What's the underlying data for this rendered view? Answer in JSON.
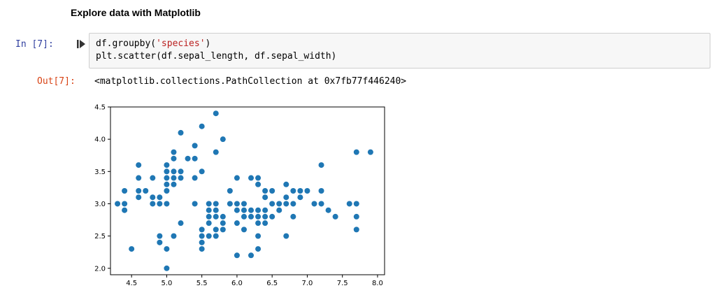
{
  "notebook": {
    "heading": "Explore data with Matplotlib",
    "cell": {
      "in_prompt": "In [7]:",
      "code_line1_pre": "df.groupby(",
      "code_line1_str": "'species'",
      "code_line1_post": ")",
      "code_line2": "plt.scatter(df.sepal_length, df.sepal_width)",
      "out_prompt": "Out[7]:",
      "out_text": "<matplotlib.collections.PathCollection at 0x7fb77f446240>"
    }
  },
  "colors": {
    "marker": "#1f77b4",
    "in_prompt": "#303f9f",
    "out_prompt": "#d84315",
    "string": "#ba2121"
  },
  "chart_data": {
    "type": "scatter",
    "xlim": [
      4.2,
      8.1
    ],
    "ylim": [
      1.9,
      4.5
    ],
    "xticks": [
      4.5,
      5.0,
      5.5,
      6.0,
      6.5,
      7.0,
      7.5,
      8.0
    ],
    "xtick_labels": [
      "4.5",
      "5.0",
      "5.5",
      "6.0",
      "6.5",
      "7.0",
      "7.5",
      "8.0"
    ],
    "yticks": [
      2.0,
      2.5,
      3.0,
      3.5,
      4.0,
      4.5
    ],
    "ytick_labels": [
      "2.0",
      "2.5",
      "3.0",
      "3.5",
      "4.0",
      "4.5"
    ],
    "grid": false,
    "points": [
      [
        4.3,
        3.0
      ],
      [
        4.4,
        3.0
      ],
      [
        4.4,
        2.9
      ],
      [
        4.4,
        3.2
      ],
      [
        4.5,
        2.3
      ],
      [
        4.6,
        3.1
      ],
      [
        4.6,
        3.4
      ],
      [
        4.6,
        3.6
      ],
      [
        4.6,
        3.2
      ],
      [
        4.7,
        3.2
      ],
      [
        4.8,
        3.4
      ],
      [
        4.8,
        3.0
      ],
      [
        4.8,
        3.1
      ],
      [
        4.9,
        3.0
      ],
      [
        4.9,
        3.1
      ],
      [
        4.9,
        2.4
      ],
      [
        4.9,
        2.5
      ],
      [
        5.0,
        3.6
      ],
      [
        5.0,
        3.4
      ],
      [
        5.0,
        3.0
      ],
      [
        5.0,
        3.5
      ],
      [
        5.0,
        3.2
      ],
      [
        5.0,
        3.3
      ],
      [
        5.0,
        2.0
      ],
      [
        5.0,
        2.3
      ],
      [
        5.1,
        3.5
      ],
      [
        5.1,
        3.8
      ],
      [
        5.1,
        3.7
      ],
      [
        5.1,
        3.3
      ],
      [
        5.1,
        3.4
      ],
      [
        5.1,
        2.5
      ],
      [
        5.2,
        4.1
      ],
      [
        5.2,
        3.5
      ],
      [
        5.2,
        3.4
      ],
      [
        5.2,
        2.7
      ],
      [
        5.3,
        3.7
      ],
      [
        5.4,
        3.9
      ],
      [
        5.4,
        3.7
      ],
      [
        5.4,
        3.4
      ],
      [
        5.4,
        3.0
      ],
      [
        5.5,
        4.2
      ],
      [
        5.5,
        3.5
      ],
      [
        5.5,
        2.3
      ],
      [
        5.5,
        2.4
      ],
      [
        5.5,
        2.6
      ],
      [
        5.5,
        2.5
      ],
      [
        5.6,
        3.0
      ],
      [
        5.6,
        2.9
      ],
      [
        5.6,
        2.5
      ],
      [
        5.6,
        2.8
      ],
      [
        5.6,
        2.7
      ],
      [
        5.7,
        4.4
      ],
      [
        5.7,
        3.8
      ],
      [
        5.7,
        2.6
      ],
      [
        5.7,
        2.8
      ],
      [
        5.7,
        2.5
      ],
      [
        5.7,
        2.9
      ],
      [
        5.7,
        3.0
      ],
      [
        5.8,
        4.0
      ],
      [
        5.8,
        2.7
      ],
      [
        5.8,
        2.6
      ],
      [
        5.8,
        2.8
      ],
      [
        5.9,
        3.0
      ],
      [
        5.9,
        3.2
      ],
      [
        6.0,
        2.2
      ],
      [
        6.0,
        2.9
      ],
      [
        6.0,
        2.7
      ],
      [
        6.0,
        3.4
      ],
      [
        6.0,
        3.0
      ],
      [
        6.1,
        2.9
      ],
      [
        6.1,
        2.8
      ],
      [
        6.1,
        2.6
      ],
      [
        6.1,
        3.0
      ],
      [
        6.2,
        2.2
      ],
      [
        6.2,
        2.9
      ],
      [
        6.2,
        3.4
      ],
      [
        6.2,
        2.8
      ],
      [
        6.3,
        3.3
      ],
      [
        6.3,
        2.5
      ],
      [
        6.3,
        2.3
      ],
      [
        6.3,
        2.7
      ],
      [
        6.3,
        2.9
      ],
      [
        6.3,
        2.8
      ],
      [
        6.3,
        3.4
      ],
      [
        6.4,
        3.2
      ],
      [
        6.4,
        2.9
      ],
      [
        6.4,
        2.7
      ],
      [
        6.4,
        2.8
      ],
      [
        6.4,
        3.1
      ],
      [
        6.5,
        2.8
      ],
      [
        6.5,
        3.0
      ],
      [
        6.5,
        3.2
      ],
      [
        6.6,
        2.9
      ],
      [
        6.6,
        3.0
      ],
      [
        6.7,
        3.1
      ],
      [
        6.7,
        3.0
      ],
      [
        6.7,
        2.5
      ],
      [
        6.7,
        3.3
      ],
      [
        6.8,
        2.8
      ],
      [
        6.8,
        3.0
      ],
      [
        6.8,
        3.2
      ],
      [
        6.9,
        3.1
      ],
      [
        6.9,
        3.2
      ],
      [
        7.0,
        3.2
      ],
      [
        7.1,
        3.0
      ],
      [
        7.2,
        3.6
      ],
      [
        7.2,
        3.2
      ],
      [
        7.2,
        3.0
      ],
      [
        7.3,
        2.9
      ],
      [
        7.4,
        2.8
      ],
      [
        7.6,
        3.0
      ],
      [
        7.7,
        3.8
      ],
      [
        7.7,
        2.6
      ],
      [
        7.7,
        2.8
      ],
      [
        7.7,
        3.0
      ],
      [
        7.9,
        3.8
      ]
    ]
  }
}
